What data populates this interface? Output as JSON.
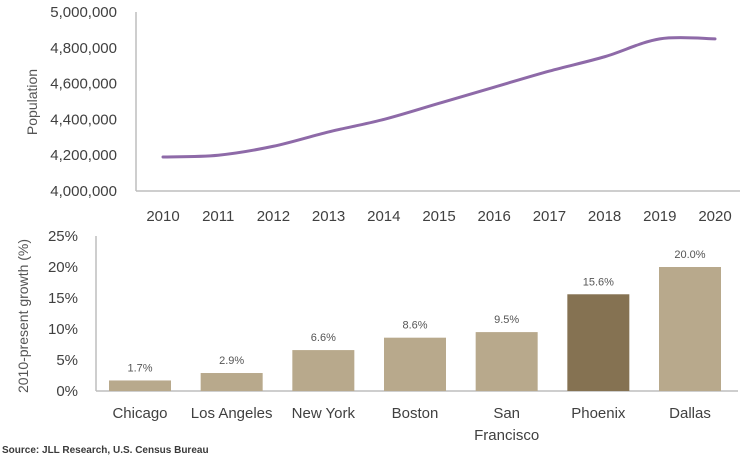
{
  "chart_data": [
    {
      "type": "line",
      "title": "",
      "xlabel": "",
      "ylabel": "Population",
      "x": [
        2010,
        2011,
        2012,
        2013,
        2014,
        2015,
        2016,
        2017,
        2018,
        2019,
        2020
      ],
      "x_tick_labels": [
        "2010",
        "2011",
        "2012",
        "2013",
        "2014",
        "2015",
        "2016",
        "2017",
        "2018",
        "2019",
        "2020"
      ],
      "series": [
        {
          "name": "Population",
          "color": "#8e6aa8",
          "values": [
            4190000,
            4200000,
            4250000,
            4330000,
            4400000,
            4490000,
            4580000,
            4670000,
            4750000,
            4850000,
            4850000
          ]
        }
      ],
      "ylim": [
        4000000,
        5000000
      ],
      "y_ticks": [
        4000000,
        4200000,
        4400000,
        4600000,
        4800000,
        5000000
      ],
      "y_tick_labels": [
        "4,000,000",
        "4,200,000",
        "4,400,000",
        "4,600,000",
        "4,800,000",
        "5,000,000"
      ],
      "grid": false,
      "legend": "none"
    },
    {
      "type": "bar",
      "title": "",
      "xlabel": "",
      "ylabel": "2010-present growth (%)",
      "categories": [
        "Chicago",
        "Los Angeles",
        "New York",
        "Boston",
        "San Francisco",
        "Phoenix",
        "Dallas"
      ],
      "category_lines": [
        [
          "Chicago"
        ],
        [
          "Los Angeles"
        ],
        [
          "New York"
        ],
        [
          "Boston"
        ],
        [
          "San",
          "Francisco"
        ],
        [
          "Phoenix"
        ],
        [
          "Dallas"
        ]
      ],
      "values": [
        1.7,
        2.9,
        6.6,
        8.6,
        9.5,
        15.6,
        20.0
      ],
      "data_labels": [
        "1.7%",
        "2.9%",
        "6.6%",
        "8.6%",
        "9.5%",
        "15.6%",
        "20.0%"
      ],
      "highlight": "Phoenix",
      "colors": {
        "default": "#b8a98c",
        "highlight": "#857252"
      },
      "ylim": [
        0,
        25
      ],
      "y_ticks": [
        0,
        5,
        10,
        15,
        20,
        25
      ],
      "y_tick_labels": [
        "0%",
        "5%",
        "10%",
        "15%",
        "20%",
        "25%"
      ],
      "grid": false,
      "legend": "none"
    }
  ],
  "source": "Source: JLL Research, U.S. Census Bureau"
}
